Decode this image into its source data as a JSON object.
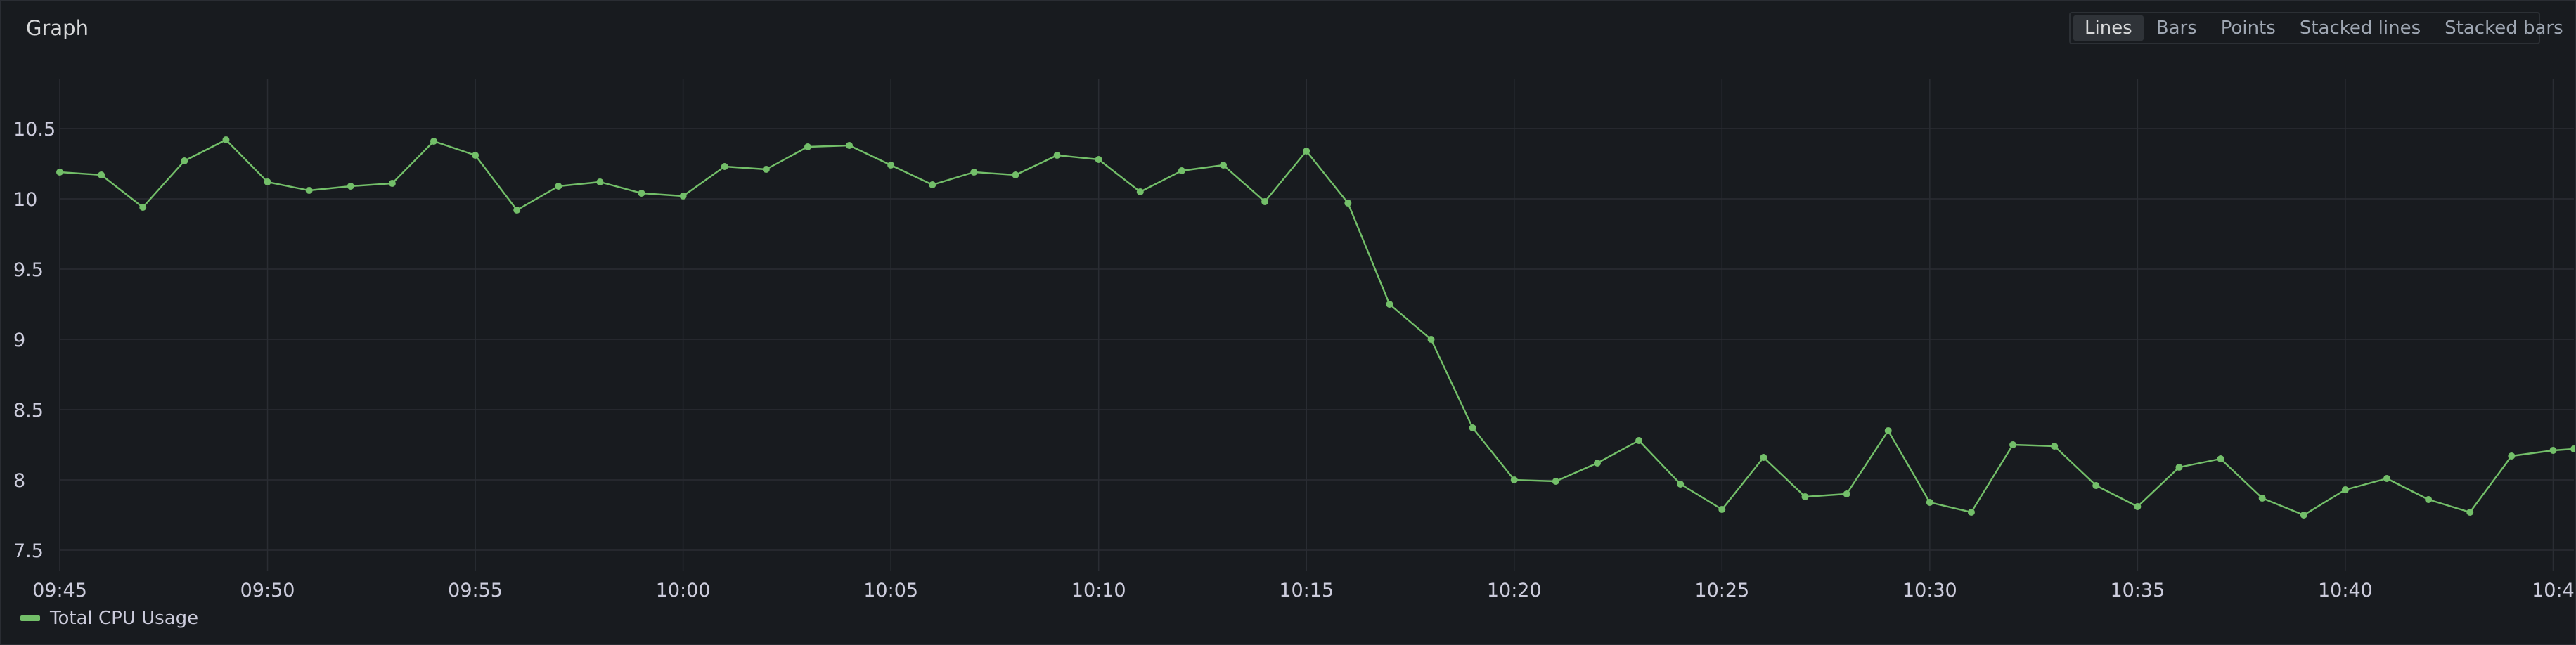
{
  "panel": {
    "title": "Graph"
  },
  "viz_options": [
    {
      "label": "Lines",
      "active": true
    },
    {
      "label": "Bars",
      "active": false
    },
    {
      "label": "Points",
      "active": false
    },
    {
      "label": "Stacked lines",
      "active": false
    },
    {
      "label": "Stacked bars",
      "active": false
    }
  ],
  "colors": {
    "series": "#73bf69",
    "grid": "#2a2d33",
    "tick_text": "#ccccdc"
  },
  "chart_data": {
    "type": "line",
    "title": "",
    "xlabel": "",
    "ylabel": "",
    "grid": true,
    "legend_placement": "bottom-left",
    "x_ticks": [
      "09:45",
      "09:50",
      "09:55",
      "10:00",
      "10:05",
      "10:10",
      "10:15",
      "10:20",
      "10:25",
      "10:30",
      "10:35",
      "10:40",
      "10:4"
    ],
    "y_ticks": [
      "10.5",
      "10",
      "9.5",
      "9",
      "8.5",
      "8",
      "7.5"
    ],
    "ylim": [
      7.35,
      10.85
    ],
    "x_unit": "minutes from 09:45",
    "xlim": [
      0,
      60.5
    ],
    "series": [
      {
        "name": "Total CPU Usage",
        "x": [
          0,
          1,
          2,
          3,
          4,
          5,
          6,
          7,
          8,
          9,
          10,
          11,
          12,
          13,
          14,
          15,
          16,
          17,
          18,
          19,
          20,
          21,
          22,
          23,
          24,
          25,
          26,
          27,
          28,
          29,
          30,
          31,
          32,
          33,
          34,
          35,
          36,
          37,
          38,
          39,
          40,
          41,
          42,
          43,
          44,
          45,
          46,
          47,
          48,
          49,
          50,
          51,
          52,
          53,
          54,
          55,
          56,
          57,
          58,
          59,
          60,
          60.5
        ],
        "values": [
          10.19,
          10.17,
          9.94,
          10.27,
          10.42,
          10.12,
          10.06,
          10.09,
          10.11,
          10.41,
          10.31,
          9.92,
          10.09,
          10.12,
          10.04,
          10.02,
          10.23,
          10.21,
          10.37,
          10.38,
          10.24,
          10.1,
          10.19,
          10.17,
          10.31,
          10.28,
          10.05,
          10.2,
          10.24,
          9.98,
          10.34,
          9.97,
          9.25,
          9.0,
          8.37,
          8.0,
          7.99,
          8.12,
          8.28,
          7.97,
          7.79,
          8.16,
          7.88,
          7.9,
          8.35,
          7.84,
          7.77,
          8.25,
          8.24,
          7.96,
          7.81,
          8.09,
          8.15,
          7.87,
          7.75,
          7.93,
          8.01,
          7.86,
          7.77,
          8.17,
          8.21,
          8.22
        ]
      }
    ]
  }
}
